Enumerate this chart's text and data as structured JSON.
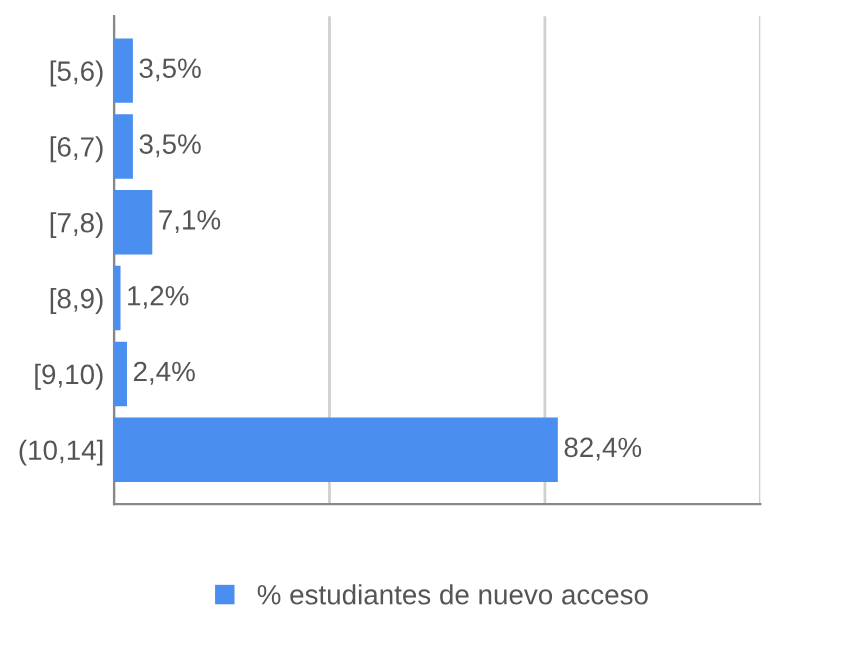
{
  "chart_data": {
    "type": "bar",
    "orientation": "horizontal",
    "categories": [
      "[5,6)",
      "[6,7)",
      "[7,8)",
      "[8,9)",
      "[9,10)",
      "(10,14]"
    ],
    "series": [
      {
        "name": "% estudiantes de nuevo acceso",
        "color": "#4a8ef0",
        "values": [
          3.5,
          3.5,
          7.1,
          1.2,
          2.4,
          82.4
        ],
        "value_labels": [
          "3,5%",
          "3,5%",
          "7,1%",
          "1,2%",
          "2,4%",
          "82,4%"
        ]
      }
    ],
    "xlim": [
      0,
      120
    ],
    "xticks": [
      {
        "value": 0,
        "label": null
      },
      {
        "value": 40,
        "label": null
      },
      {
        "value": 80,
        "label": null
      },
      {
        "value": 120,
        "label": null
      }
    ],
    "tick_labels": "y",
    "grid": "x",
    "legend": "bottom"
  }
}
